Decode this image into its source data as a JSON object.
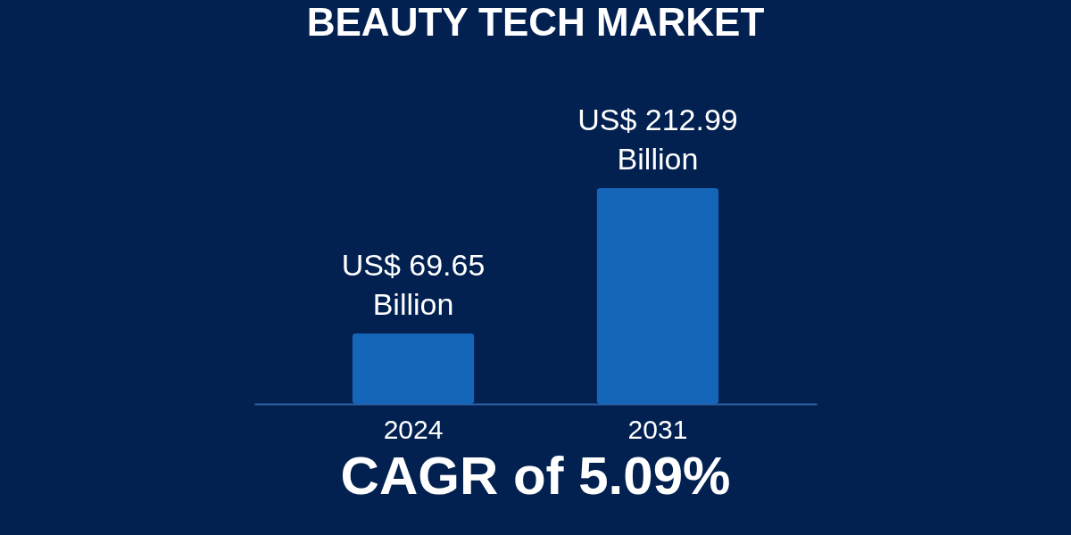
{
  "chart_data": {
    "type": "bar",
    "title": "BEAUTY TECH MARKET",
    "categories": [
      "2024",
      "2031"
    ],
    "values": [
      69.65,
      212.99
    ],
    "value_labels": [
      "US$ 69.65\nBillion",
      "US$ 212.99\nBillion"
    ],
    "color": "#1565b8",
    "annotations": [
      "CAGR of 5.09%"
    ]
  }
}
